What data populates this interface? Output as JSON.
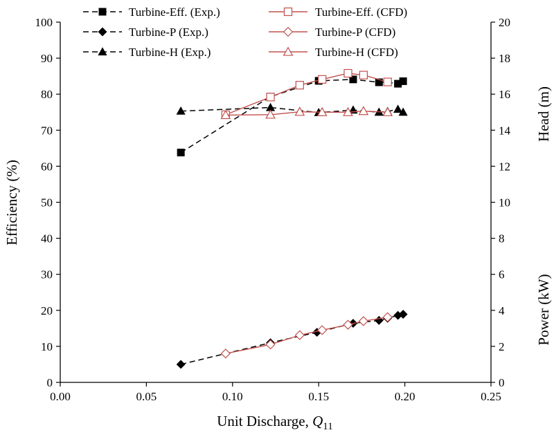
{
  "chart_data": {
    "type": "line",
    "title": "",
    "xlabel_main": "Unit Discharge, ",
    "xlabel_symbol": "Q",
    "xlabel_subscript": "11",
    "ylabel_left": "Efficiency (%)",
    "ylabel_right_head": "Head (m)",
    "ylabel_right_power": "Power (kW)",
    "xlim": [
      0,
      0.25
    ],
    "ylim_left": [
      0,
      100
    ],
    "ylim_right": [
      0,
      20
    ],
    "x_ticks": [
      "0.00",
      "0.05",
      "0.10",
      "0.15",
      "0.20",
      "0.25"
    ],
    "y_left_ticks": [
      "0",
      "10",
      "20",
      "30",
      "40",
      "50",
      "60",
      "70",
      "80",
      "90",
      "100"
    ],
    "y_right_ticks": [
      "0",
      "2",
      "4",
      "6",
      "8",
      "10",
      "12",
      "14",
      "16",
      "18",
      "20"
    ],
    "grid": false,
    "legend_position": "top",
    "series": [
      {
        "name": "Turbine-Eff. (Exp.)",
        "axis": "left",
        "marker": "square",
        "filled": true,
        "color": "#000000",
        "dashed": true,
        "x": [
          0.07,
          0.122,
          0.15,
          0.17,
          0.185,
          0.19,
          0.196,
          0.199
        ],
        "y": [
          63.8,
          79.3,
          83.7,
          84.1,
          83.3,
          83.3,
          82.9,
          83.6
        ]
      },
      {
        "name": "Turbine-P (Exp.)",
        "axis": "left",
        "marker": "diamond",
        "filled": true,
        "color": "#000000",
        "dashed": true,
        "x": [
          0.07,
          0.122,
          0.149,
          0.17,
          0.185,
          0.19,
          0.196,
          0.199
        ],
        "y": [
          5.0,
          11.0,
          13.9,
          16.4,
          17.2,
          17.8,
          18.6,
          18.9
        ]
      },
      {
        "name": "Turbine-H (Exp.)",
        "axis": "left",
        "marker": "triangle",
        "filled": true,
        "color": "#000000",
        "dashed": true,
        "x": [
          0.07,
          0.122,
          0.15,
          0.17,
          0.185,
          0.19,
          0.196,
          0.199
        ],
        "y": [
          75.3,
          76.3,
          74.9,
          75.6,
          75.0,
          75.2,
          75.8,
          75.0
        ]
      },
      {
        "name": "Turbine-Eff. (CFD)",
        "axis": "left",
        "marker": "square",
        "filled": false,
        "color": "#c0504d",
        "dashed": false,
        "x": [
          0.096,
          0.122,
          0.139,
          0.152,
          0.167,
          0.176,
          0.19
        ],
        "y": [
          74.3,
          79.2,
          82.5,
          84.1,
          85.8,
          85.3,
          83.4
        ]
      },
      {
        "name": "Turbine-P (CFD)",
        "axis": "left",
        "marker": "diamond",
        "filled": false,
        "color": "#c0504d",
        "dashed": false,
        "x": [
          0.096,
          0.122,
          0.139,
          0.152,
          0.167,
          0.176,
          0.19
        ],
        "y": [
          8.0,
          10.5,
          13.1,
          14.5,
          16.0,
          17.0,
          18.1
        ]
      },
      {
        "name": "Turbine-H (CFD)",
        "axis": "left",
        "marker": "triangle",
        "filled": false,
        "color": "#c0504d",
        "dashed": false,
        "x": [
          0.096,
          0.122,
          0.139,
          0.152,
          0.167,
          0.176,
          0.19
        ],
        "y": [
          74.2,
          74.3,
          75.1,
          75.0,
          75.0,
          75.3,
          75.0
        ]
      }
    ]
  }
}
